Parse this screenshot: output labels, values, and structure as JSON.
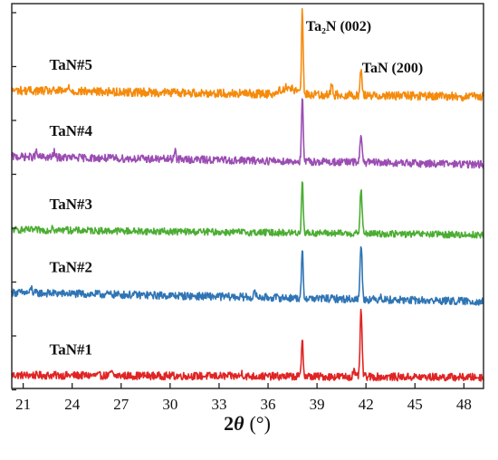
{
  "chart_data": {
    "type": "line",
    "title": "",
    "xlabel_var": "2θ",
    "xlabel_unit": "(°)",
    "ylabel": "",
    "xlim": [
      20.3,
      49.2
    ],
    "xticks": [
      "21",
      "24",
      "27",
      "30",
      "33",
      "36",
      "39",
      "42",
      "45",
      "48"
    ],
    "y_ticks_labeled": false,
    "grid": false,
    "legend": "none",
    "peak_annotations": [
      {
        "text": "Ta₂N (002)",
        "x": 38.1
      },
      {
        "text": "TaN (200)",
        "x": 41.7
      }
    ],
    "series": [
      {
        "name": "TaN#1",
        "color": "#e02424",
        "offset": 0.0,
        "baseline": 0.6,
        "noise": 0.45,
        "end_baseline": 0.35,
        "peaks": [
          {
            "x": 38.1,
            "height": 4.6,
            "width": 0.05
          },
          {
            "x": 41.7,
            "height": 7.6,
            "width": 0.06
          },
          {
            "x": 41.25,
            "height": 0.8,
            "width": 0.05
          },
          {
            "x": 26.4,
            "height": 0.5,
            "width": 0.05
          },
          {
            "x": 34.4,
            "height": 0.4,
            "width": 0.05
          }
        ]
      },
      {
        "name": "TaN#2",
        "color": "#2f75b5",
        "offset": 8.8,
        "baseline": 1.4,
        "noise": 0.45,
        "end_baseline": 0.35,
        "peaks": [
          {
            "x": 38.1,
            "height": 5.5,
            "width": 0.05
          },
          {
            "x": 41.7,
            "height": 6.6,
            "width": 0.06
          },
          {
            "x": 35.2,
            "height": 0.7,
            "width": 0.05
          },
          {
            "x": 42.9,
            "height": 0.6,
            "width": 0.05
          },
          {
            "x": 21.5,
            "height": 0.6,
            "width": 0.05
          }
        ]
      },
      {
        "name": "TaN#3",
        "color": "#4bad32",
        "offset": 16.6,
        "baseline": 0.9,
        "noise": 0.4,
        "end_baseline": 0.3,
        "peaks": [
          {
            "x": 38.1,
            "height": 6.4,
            "width": 0.05
          },
          {
            "x": 41.7,
            "height": 5.2,
            "width": 0.06
          },
          {
            "x": 22.8,
            "height": 0.6,
            "width": 0.05
          },
          {
            "x": 23.6,
            "height": 0.5,
            "width": 0.05
          }
        ]
      },
      {
        "name": "TaN#4",
        "color": "#9b4db3",
        "offset": 24.8,
        "baseline": 1.2,
        "noise": 0.45,
        "end_baseline": 0.3,
        "peaks": [
          {
            "x": 38.1,
            "height": 7.4,
            "width": 0.05
          },
          {
            "x": 41.7,
            "height": 3.3,
            "width": 0.06
          },
          {
            "x": 30.3,
            "height": 1.3,
            "width": 0.05
          },
          {
            "x": 21.8,
            "height": 0.6,
            "width": 0.05
          },
          {
            "x": 22.9,
            "height": 0.6,
            "width": 0.05
          }
        ]
      },
      {
        "name": "TaN#5",
        "color": "#f58a0b",
        "offset": 32.6,
        "baseline": 1.1,
        "noise": 0.5,
        "end_baseline": 0.35,
        "peaks": [
          {
            "x": 38.1,
            "height": 9.6,
            "width": 0.05
          },
          {
            "x": 41.7,
            "height": 2.8,
            "width": 0.06
          },
          {
            "x": 37.2,
            "height": 0.8,
            "width": 0.4
          },
          {
            "x": 39.9,
            "height": 1.2,
            "width": 0.05
          },
          {
            "x": 23.8,
            "height": 0.7,
            "width": 0.05
          }
        ]
      }
    ]
  }
}
